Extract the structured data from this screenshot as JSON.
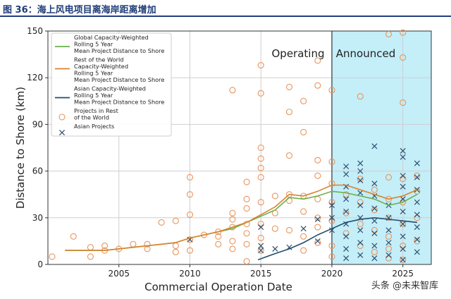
{
  "header": {
    "title": "图 36：海上风电项目离海岸距离增加"
  },
  "watermark": "头条 @未来智库",
  "colors": {
    "global": "#6ab04c",
    "row": "#d9822b",
    "asian": "#1f4e6e",
    "announced_bg": "#c4eef8",
    "marker_row": "#e8945a",
    "marker_asia": "#2f4f6f",
    "header": "#1f3d7a"
  },
  "chart_data": {
    "type": "scatter",
    "xlabel": "Commercial Operation Date",
    "ylabel": "Distance to Shore (km)",
    "xlim": [
      2000,
      2027
    ],
    "ylim": [
      0,
      150
    ],
    "x_ticks": [
      2005,
      2010,
      2015,
      2020,
      2025
    ],
    "y_ticks": [
      0,
      30,
      60,
      90,
      120,
      150
    ],
    "grid": true,
    "legend_position": "top-left",
    "regions": [
      {
        "name": "Operating",
        "label": "Operating",
        "x_from": 2000,
        "x_to": 2020
      },
      {
        "name": "Announced",
        "label": "Announced",
        "x_from": 2020,
        "x_to": 2027
      }
    ],
    "legend": [
      {
        "key": "global",
        "label": [
          "Global Capacity-Weighted",
          "Rolling 5 Year",
          "Mean Project Distance to Shore"
        ],
        "kind": "line"
      },
      {
        "key": "row",
        "label": [
          "Rest of the World",
          "Capacity-Weighted",
          "Rolling 5 Year",
          "Mean Project Distance to Shore"
        ],
        "kind": "line"
      },
      {
        "key": "asian",
        "label": [
          "Asian Capacity-Weighted",
          "Rolling 5 Year",
          "Mean Project Distance to Shore"
        ],
        "kind": "line"
      },
      {
        "key": "row_points",
        "label": [
          "Projects in Rest",
          "of the World"
        ],
        "kind": "circle"
      },
      {
        "key": "asia_points",
        "label": [
          "Asian Projects"
        ],
        "kind": "x"
      }
    ],
    "series": [
      {
        "key": "global",
        "x": [
          2001.2,
          2002,
          2003,
          2004,
          2005,
          2006,
          2007,
          2008,
          2009,
          2010,
          2011,
          2012,
          2013,
          2014,
          2015,
          2016,
          2017,
          2018,
          2019,
          2020,
          2021,
          2022,
          2023,
          2024,
          2025,
          2026
        ],
        "y": [
          9,
          9,
          9,
          9,
          10,
          11,
          12,
          13,
          14,
          17,
          19,
          21,
          23,
          27,
          31,
          35,
          43,
          42,
          44,
          47,
          46,
          44,
          42,
          38,
          40,
          45
        ]
      },
      {
        "key": "row",
        "x": [
          2001.2,
          2002,
          2003,
          2004,
          2005,
          2006,
          2007,
          2008,
          2009,
          2010,
          2011,
          2012,
          2013,
          2014,
          2015,
          2016,
          2017,
          2018,
          2019,
          2020,
          2021,
          2022,
          2023,
          2024,
          2025,
          2026
        ],
        "y": [
          9,
          9,
          9,
          9,
          10,
          11,
          12,
          13,
          14,
          17,
          19,
          21,
          24,
          27,
          32,
          37,
          45,
          44,
          47,
          51,
          51,
          48,
          45,
          42,
          44,
          48
        ]
      },
      {
        "key": "asian",
        "x": [
          2014.8,
          2016,
          2017,
          2018,
          2019,
          2020,
          2021,
          2022,
          2023,
          2024,
          2025,
          2026
        ],
        "y": [
          3,
          7,
          10,
          14,
          19,
          23,
          27,
          29,
          30,
          29,
          28,
          27
        ]
      }
    ],
    "points_row": [
      [
        2000.3,
        5
      ],
      [
        2001.8,
        18
      ],
      [
        2003,
        5
      ],
      [
        2003,
        11
      ],
      [
        2004,
        9
      ],
      [
        2004,
        12
      ],
      [
        2005,
        10
      ],
      [
        2006,
        13
      ],
      [
        2007,
        10
      ],
      [
        2007,
        13
      ],
      [
        2008,
        27
      ],
      [
        2009,
        8
      ],
      [
        2009,
        12
      ],
      [
        2009,
        28
      ],
      [
        2010,
        9
      ],
      [
        2010,
        16
      ],
      [
        2010,
        32
      ],
      [
        2010,
        45
      ],
      [
        2010,
        56
      ],
      [
        2011,
        19
      ],
      [
        2012,
        13
      ],
      [
        2012,
        18
      ],
      [
        2012,
        21
      ],
      [
        2013,
        10
      ],
      [
        2013,
        15
      ],
      [
        2013,
        24
      ],
      [
        2013,
        29
      ],
      [
        2013,
        33
      ],
      [
        2013,
        112
      ],
      [
        2014,
        2
      ],
      [
        2014,
        13
      ],
      [
        2014,
        20
      ],
      [
        2014,
        26
      ],
      [
        2014,
        36
      ],
      [
        2014,
        42
      ],
      [
        2014,
        53
      ],
      [
        2015,
        9
      ],
      [
        2015,
        17
      ],
      [
        2015,
        26
      ],
      [
        2015,
        40
      ],
      [
        2015,
        56
      ],
      [
        2015,
        62
      ],
      [
        2015,
        68
      ],
      [
        2015,
        75
      ],
      [
        2015,
        110
      ],
      [
        2015,
        128
      ],
      [
        2016,
        23
      ],
      [
        2016,
        33
      ],
      [
        2016,
        44
      ],
      [
        2017,
        22
      ],
      [
        2017,
        41
      ],
      [
        2017,
        45
      ],
      [
        2017,
        70
      ],
      [
        2017,
        98
      ],
      [
        2017,
        114
      ],
      [
        2018,
        9
      ],
      [
        2018,
        18
      ],
      [
        2018,
        34
      ],
      [
        2018,
        44
      ],
      [
        2018,
        85
      ],
      [
        2018,
        105
      ],
      [
        2019,
        14
      ],
      [
        2019,
        24
      ],
      [
        2019,
        30
      ],
      [
        2019,
        42
      ],
      [
        2019,
        57
      ],
      [
        2019,
        67
      ],
      [
        2019,
        115
      ],
      [
        2019,
        131
      ],
      [
        2020,
        5
      ],
      [
        2020,
        12
      ],
      [
        2020,
        28
      ],
      [
        2020,
        40
      ],
      [
        2020,
        52
      ],
      [
        2020,
        66
      ],
      [
        2020,
        112
      ],
      [
        2021,
        20
      ],
      [
        2021,
        33
      ],
      [
        2021,
        45
      ],
      [
        2022,
        12
      ],
      [
        2022,
        26
      ],
      [
        2022,
        40
      ],
      [
        2022,
        55
      ],
      [
        2022,
        108
      ],
      [
        2023,
        8
      ],
      [
        2023,
        22
      ],
      [
        2023,
        35
      ],
      [
        2023,
        48
      ],
      [
        2024,
        4
      ],
      [
        2024,
        10
      ],
      [
        2024,
        18
      ],
      [
        2024,
        30
      ],
      [
        2024,
        42
      ],
      [
        2024,
        56
      ],
      [
        2024,
        148
      ],
      [
        2025,
        3
      ],
      [
        2025,
        12
      ],
      [
        2025,
        26
      ],
      [
        2025,
        40
      ],
      [
        2025,
        55
      ],
      [
        2025,
        104
      ],
      [
        2025,
        133
      ],
      [
        2025,
        149
      ],
      [
        2026,
        15
      ],
      [
        2026,
        30
      ],
      [
        2026,
        47
      ],
      [
        2026,
        57
      ]
    ],
    "points_asia": [
      [
        2010,
        16
      ],
      [
        2015,
        9
      ],
      [
        2015,
        12
      ],
      [
        2015,
        24
      ],
      [
        2016,
        10
      ],
      [
        2017,
        11
      ],
      [
        2018,
        23
      ],
      [
        2019,
        15
      ],
      [
        2019,
        29
      ],
      [
        2020,
        22
      ],
      [
        2020,
        30
      ],
      [
        2020,
        38
      ],
      [
        2021,
        4
      ],
      [
        2021,
        10
      ],
      [
        2021,
        18
      ],
      [
        2021,
        26
      ],
      [
        2021,
        34
      ],
      [
        2021,
        42
      ],
      [
        2021,
        50
      ],
      [
        2021,
        58
      ],
      [
        2021,
        63
      ],
      [
        2022,
        6
      ],
      [
        2022,
        14
      ],
      [
        2022,
        22
      ],
      [
        2022,
        30
      ],
      [
        2022,
        38
      ],
      [
        2022,
        46
      ],
      [
        2022,
        54
      ],
      [
        2022,
        60
      ],
      [
        2022,
        65
      ],
      [
        2023,
        4
      ],
      [
        2023,
        12
      ],
      [
        2023,
        20
      ],
      [
        2023,
        28
      ],
      [
        2023,
        36
      ],
      [
        2023,
        44
      ],
      [
        2023,
        52
      ],
      [
        2023,
        76
      ],
      [
        2024,
        6
      ],
      [
        2024,
        14
      ],
      [
        2024,
        22
      ],
      [
        2024,
        30
      ],
      [
        2024,
        38
      ],
      [
        2025,
        3
      ],
      [
        2025,
        10
      ],
      [
        2025,
        18
      ],
      [
        2025,
        26
      ],
      [
        2025,
        34
      ],
      [
        2025,
        42
      ],
      [
        2025,
        50
      ],
      [
        2025,
        57
      ],
      [
        2025,
        69
      ],
      [
        2025,
        73
      ],
      [
        2026,
        8
      ],
      [
        2026,
        16
      ],
      [
        2026,
        24
      ],
      [
        2026,
        32
      ],
      [
        2026,
        40
      ],
      [
        2026,
        48
      ],
      [
        2026,
        56
      ],
      [
        2026,
        65
      ]
    ]
  }
}
